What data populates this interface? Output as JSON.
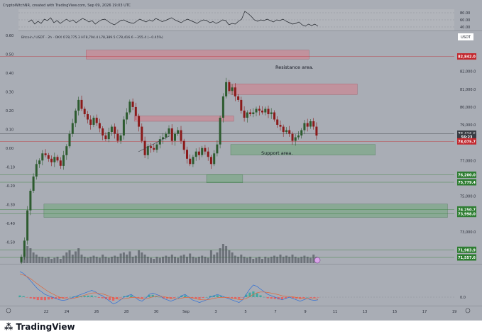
{
  "header": {
    "credit": "CryptoWitchNR, created with TradingView.com, Sep 09, 2026 19:03 UTC"
  },
  "symbol": {
    "info": "Bitcoin / USDT · 2h · OKX  O78,775.3  H78,794.4  L78,389.5  C78,416.6  −355.4 (−0.45%)",
    "currency": "USDT"
  },
  "annotations": {
    "resistance": "Resistance area.",
    "support": "Support area."
  },
  "footer": {
    "brand": "TradingView"
  },
  "colors": {
    "background": "#a9adb5",
    "panel": "#b0b3ba",
    "candle_up": "#2d5b2f",
    "candle_down": "#8b1a1a",
    "resistance_zone": "#c98a95",
    "support_zone": "#7fa88a",
    "price_red": "#c2272d",
    "price_green": "#2e7d32"
  },
  "chart_data": [
    {
      "type": "line",
      "name": "rsi",
      "y_ticks": [
        "80.00",
        "60.00",
        "40.00"
      ],
      "ylim": [
        30,
        90
      ],
      "values": [
        54,
        60,
        48,
        56,
        50,
        62,
        58,
        66,
        52,
        58,
        50,
        56,
        62,
        55,
        60,
        52,
        58,
        64,
        60,
        54,
        58,
        48,
        55,
        60,
        62,
        56,
        50,
        46,
        52,
        58,
        60,
        55,
        52,
        50,
        56,
        62,
        58,
        54,
        60,
        56,
        64,
        60,
        55,
        58,
        62,
        66,
        60,
        56,
        52,
        58,
        62,
        58,
        54,
        50,
        56,
        60,
        58,
        52,
        55,
        50,
        54,
        60,
        58,
        46,
        50,
        48,
        56,
        62,
        84,
        78,
        70,
        60,
        56,
        60,
        58,
        62,
        58,
        54,
        60,
        58,
        62,
        56,
        52,
        48,
        50,
        54,
        46,
        42,
        48,
        44,
        48,
        42
      ]
    },
    {
      "type": "candlestick",
      "name": "BTCUSDT 2h",
      "x_ticks": [
        "22",
        "24",
        "26",
        "28",
        "30",
        "Sep",
        "3",
        "5",
        "7",
        "9",
        "11",
        "13",
        "15",
        "17",
        "19"
      ],
      "y_ticks_right": [
        "82,000.0",
        "81,000.0",
        "80,000.0",
        "79,000.0",
        "77,000.0",
        "75,000.0",
        "73,000.0"
      ],
      "y_ticks_left": [
        "0.60",
        "0.50",
        "0.40",
        "0.30",
        "0.20",
        "0.10",
        "0.00",
        "-0.10",
        "-0.20",
        "-0.30",
        "-0.40",
        "-0.50"
      ],
      "ylim": [
        71200,
        83700
      ],
      "closes": [
        71600,
        72500,
        74200,
        75300,
        76100,
        76800,
        77000,
        77400,
        77300,
        77100,
        76900,
        77200,
        77000,
        76700,
        77300,
        77800,
        78500,
        79100,
        79800,
        80400,
        79900,
        79600,
        79300,
        79000,
        79400,
        79100,
        78800,
        78400,
        78200,
        78600,
        78900,
        78500,
        78100,
        78400,
        79300,
        79700,
        80300,
        80000,
        79500,
        78900,
        78100,
        77300,
        77800,
        77700,
        77600,
        77900,
        78200,
        78300,
        78500,
        78800,
        78100,
        78500,
        78700,
        78100,
        77600,
        77100,
        76800,
        77200,
        77500,
        77300,
        77700,
        77500,
        77200,
        76800,
        77400,
        77900,
        79400,
        80600,
        81400,
        80900,
        81100,
        80600,
        80400,
        79800,
        79400,
        79700,
        79600,
        79700,
        79900,
        79800,
        79700,
        79900,
        79600,
        79700,
        79300,
        79000,
        78900,
        78600,
        78700,
        78500,
        78100,
        78300,
        78400,
        78700,
        79100,
        78900,
        79200,
        78900,
        78400
      ],
      "price_levels": [
        {
          "label": "82,842.0",
          "value": 82842,
          "color": "#c2272d"
        },
        {
          "label": "78,416.6",
          "value": 78500,
          "color": "#3a3d44"
        },
        {
          "label": "56:23",
          "value": 78330,
          "color": "#3a3d44"
        },
        {
          "label": "78,075.7",
          "value": 78075.7,
          "color": "#c2272d"
        },
        {
          "label": "76,200.0",
          "value": 76200,
          "color": "#2e7d32"
        },
        {
          "label": "75,779.4",
          "value": 75779.4,
          "color": "#2e7d32"
        },
        {
          "label": "74,250.7",
          "value": 74250.7,
          "color": "#2e7d32"
        },
        {
          "label": "73,998.0",
          "value": 73998,
          "color": "#2e7d32"
        },
        {
          "label": "71,983.9",
          "value": 71983.9,
          "color": "#2e7d32"
        },
        {
          "label": "71,557.6",
          "value": 71557.6,
          "color": "#2e7d32"
        }
      ],
      "zones": [
        {
          "kind": "resistance",
          "x0": 22,
          "x1": 96,
          "y0": 82700,
          "y1": 83200
        },
        {
          "kind": "resistance",
          "x0": 38,
          "x1": 71,
          "y0": 79200,
          "y1": 79500
        },
        {
          "kind": "resistance",
          "x0": 70,
          "x1": 112,
          "y0": 80700,
          "y1": 81300
        },
        {
          "kind": "support",
          "x0": 70,
          "x1": 118,
          "y0": 77300,
          "y1": 77900
        },
        {
          "kind": "support",
          "x0": 62,
          "x1": 74,
          "y0": 75750,
          "y1": 76200
        },
        {
          "kind": "support",
          "x0": 8,
          "x1": 142,
          "y0": 73800,
          "y1": 74550
        }
      ],
      "volumes": [
        0.3,
        0.5,
        0.8,
        0.7,
        0.5,
        0.4,
        0.3,
        0.3,
        0.25,
        0.3,
        0.2,
        0.25,
        0.3,
        0.2,
        0.35,
        0.5,
        0.6,
        0.4,
        0.55,
        0.7,
        0.4,
        0.3,
        0.25,
        0.3,
        0.35,
        0.3,
        0.25,
        0.4,
        0.3,
        0.25,
        0.3,
        0.35,
        0.3,
        0.45,
        0.5,
        0.4,
        0.55,
        0.3,
        0.35,
        0.6,
        0.5,
        0.4,
        0.3,
        0.25,
        0.2,
        0.3,
        0.25,
        0.3,
        0.35,
        0.3,
        0.4,
        0.3,
        0.25,
        0.35,
        0.4,
        0.3,
        0.45,
        0.3,
        0.25,
        0.3,
        0.35,
        0.3,
        0.25,
        0.6,
        0.4,
        0.5,
        0.7,
        0.9,
        0.8,
        0.6,
        0.5,
        0.35,
        0.3,
        0.4,
        0.3,
        0.25,
        0.3,
        0.2,
        0.25,
        0.3,
        0.2,
        0.3,
        0.25,
        0.3,
        0.35,
        0.3,
        0.4,
        0.3,
        0.35,
        0.3,
        0.4,
        0.3,
        0.25,
        0.3,
        0.35,
        0.3,
        0.25,
        0.4,
        0.3
      ]
    },
    {
      "type": "line",
      "name": "macd",
      "y_ticks": [
        "0.0"
      ],
      "ylim": [
        -1,
        1
      ],
      "macd": [
        0.95,
        0.88,
        0.75,
        0.6,
        0.45,
        0.3,
        0.2,
        0.1,
        0.05,
        0.0,
        -0.05,
        -0.1,
        -0.12,
        -0.1,
        -0.05,
        0.0,
        0.05,
        0.1,
        0.15,
        0.2,
        0.25,
        0.2,
        0.1,
        0.05,
        -0.05,
        -0.15,
        -0.25,
        -0.2,
        -0.1,
        0.0,
        0.05,
        0.1,
        0.0,
        -0.1,
        -0.15,
        -0.05,
        0.1,
        0.15,
        0.1,
        0.05,
        -0.05,
        -0.1,
        -0.15,
        -0.1,
        -0.05,
        0.05,
        0.1,
        0.0,
        -0.1,
        -0.15,
        -0.2,
        -0.15,
        -0.1,
        0.0,
        0.05,
        0.1,
        0.05,
        0.0,
        -0.05,
        -0.1,
        -0.15,
        -0.2,
        -0.1,
        0.1,
        0.3,
        0.45,
        0.4,
        0.3,
        0.2,
        0.1,
        0.05,
        0.0,
        -0.05,
        -0.1,
        -0.05,
        0.0,
        -0.05,
        -0.1,
        -0.15,
        -0.1,
        -0.05,
        -0.1,
        -0.12,
        -0.1
      ],
      "signal": [
        0.85,
        0.82,
        0.76,
        0.68,
        0.58,
        0.48,
        0.38,
        0.29,
        0.2,
        0.13,
        0.06,
        0.0,
        -0.04,
        -0.06,
        -0.06,
        -0.04,
        -0.01,
        0.03,
        0.07,
        0.11,
        0.15,
        0.16,
        0.14,
        0.12,
        0.08,
        0.03,
        -0.03,
        -0.07,
        -0.08,
        -0.06,
        -0.04,
        -0.01,
        -0.01,
        -0.03,
        -0.06,
        -0.06,
        -0.03,
        0.01,
        0.03,
        0.04,
        0.02,
        -0.01,
        -0.04,
        -0.06,
        -0.06,
        -0.04,
        -0.01,
        -0.01,
        -0.03,
        -0.06,
        -0.09,
        -0.1,
        -0.1,
        -0.08,
        -0.05,
        -0.02,
        -0.01,
        -0.01,
        -0.02,
        -0.04,
        -0.06,
        -0.09,
        -0.09,
        -0.05,
        0.02,
        0.1,
        0.16,
        0.19,
        0.19,
        0.17,
        0.15,
        0.12,
        0.09,
        0.05,
        0.03,
        0.02,
        0.01,
        -0.01,
        -0.04,
        -0.05,
        -0.05,
        -0.06,
        -0.07,
        -0.08
      ]
    }
  ]
}
